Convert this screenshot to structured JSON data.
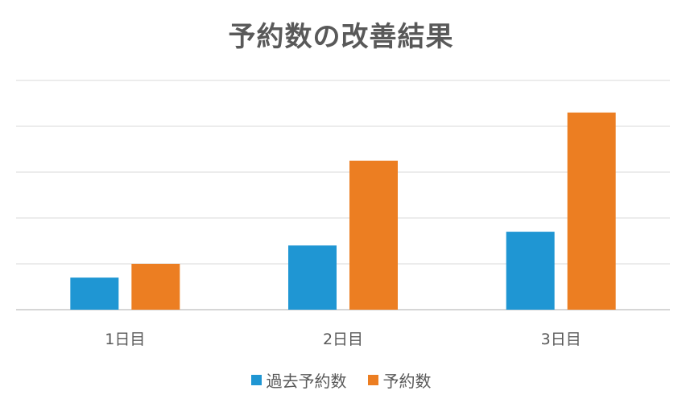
{
  "chart_data": {
    "type": "bar",
    "title": "予約数の改善結果",
    "categories": [
      "1日目",
      "2日目",
      "3日目"
    ],
    "series": [
      {
        "name": "過去予約数",
        "color": "#1F96D3",
        "values": [
          7,
          14,
          17
        ]
      },
      {
        "name": "予約数",
        "color": "#EC7E22",
        "values": [
          10,
          32.5,
          43
        ]
      }
    ],
    "xlabel": "",
    "ylabel": "",
    "ylim": [
      0,
      50
    ],
    "grid": true,
    "legend": "bottom"
  }
}
